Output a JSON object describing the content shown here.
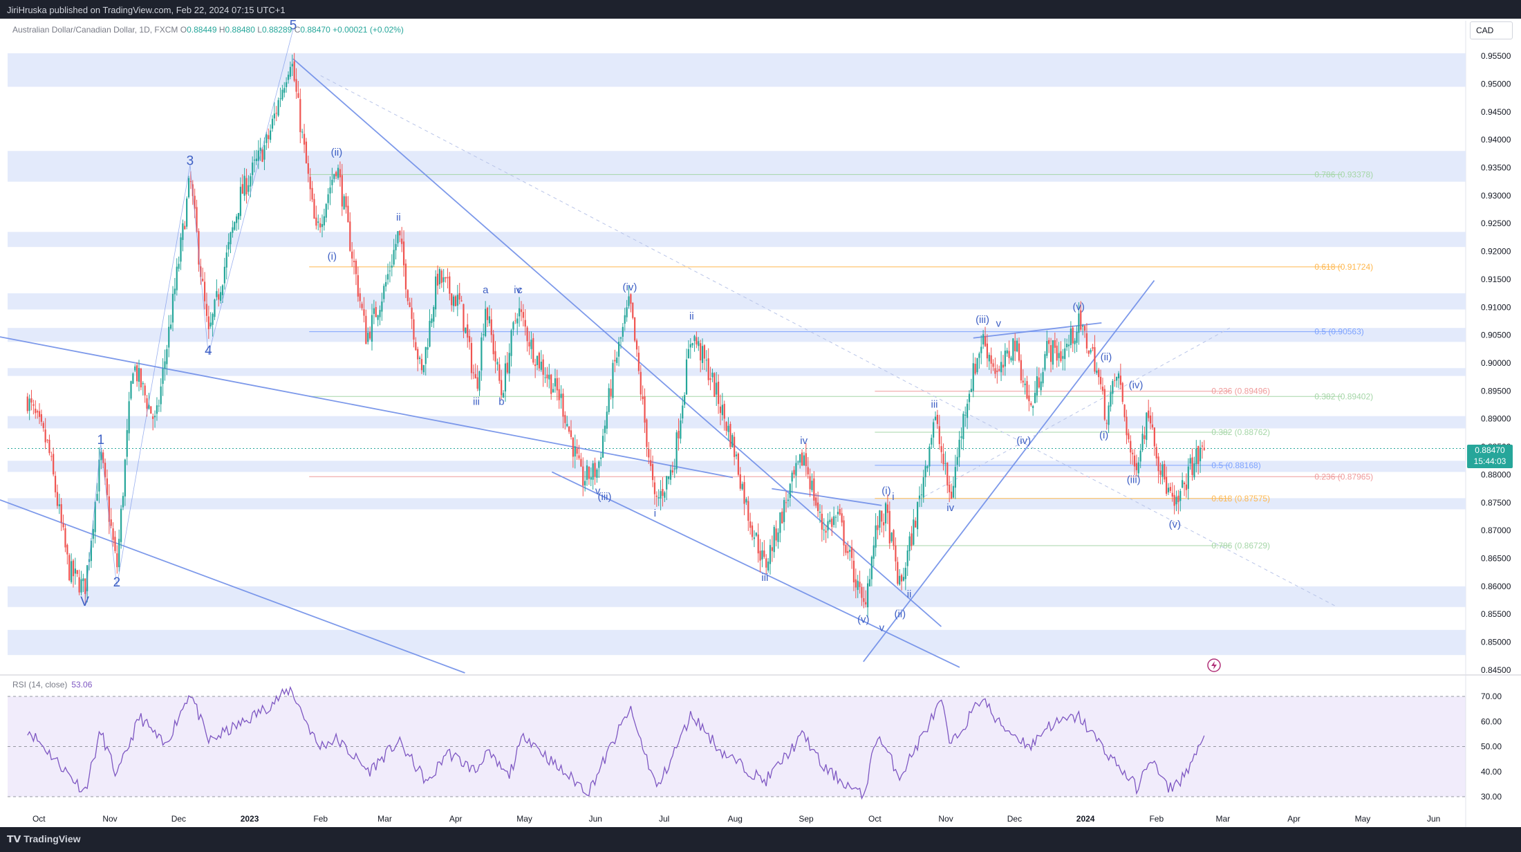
{
  "header": {
    "published_text": "JiriHruska published on TradingView.com, Feb 22, 2024 07:15 UTC+1"
  },
  "legend": {
    "symbol": "Australian Dollar/Canadian Dollar, 1D, FXCM",
    "o_label": "O",
    "o_value": "0.88449",
    "h_label": "H",
    "h_value": "0.88480",
    "l_label": "L",
    "l_value": "0.88289",
    "c_label": "C",
    "c_value": "0.88470",
    "change": "+0.00021 (+0.02%)"
  },
  "currency_label": "CAD",
  "last_price": {
    "value": "0.88470",
    "countdown": "15:44:03"
  },
  "rsi": {
    "label": "RSI (14, close)",
    "value": "53.06",
    "ticks": [
      "70.00",
      "60.00",
      "50.00",
      "40.00",
      "30.00"
    ],
    "levels": [
      70,
      50,
      30
    ]
  },
  "footer": {
    "logo_text": "TradingView"
  },
  "colors": {
    "up": "#26a69a",
    "down": "#ef5350",
    "line": "#6f8ee8",
    "rsi": "#7e57c2",
    "zone": "#e3eafb"
  },
  "chart_data": {
    "type": "candlestick",
    "x_ticks": [
      "Oct",
      "Nov",
      "Dec",
      "2023",
      "Feb",
      "Mar",
      "Apr",
      "May",
      "Jun",
      "Jul",
      "Aug",
      "Sep",
      "Oct",
      "Nov",
      "Dec",
      "2024",
      "Feb",
      "Mar",
      "Apr",
      "May",
      "Jun"
    ],
    "y_ticks": [
      "0.95500",
      "0.95000",
      "0.94500",
      "0.94000",
      "0.93500",
      "0.93000",
      "0.92500",
      "0.92000",
      "0.91500",
      "0.91000",
      "0.90500",
      "0.90000",
      "0.89500",
      "0.89000",
      "0.88500",
      "0.88000",
      "0.87500",
      "0.87000",
      "0.86500",
      "0.86000",
      "0.85500",
      "0.85000",
      "0.84500"
    ],
    "ylim": [
      0.8445,
      0.9578
    ],
    "close_path": [
      [
        "2022-09-26",
        0.8935
      ],
      [
        "2022-10-05",
        0.885
      ],
      [
        "2022-10-14",
        0.863
      ],
      [
        "2022-10-21",
        0.8595
      ],
      [
        "2022-10-28",
        0.8835
      ],
      [
        "2022-11-04",
        0.863
      ],
      [
        "2022-11-11",
        0.9
      ],
      [
        "2022-11-21",
        0.889
      ],
      [
        "2022-12-01",
        0.918
      ],
      [
        "2022-12-06",
        0.933
      ],
      [
        "2022-12-14",
        0.9045
      ],
      [
        "2022-12-28",
        0.93
      ],
      [
        "2023-01-09",
        0.94
      ],
      [
        "2023-01-19",
        0.955
      ],
      [
        "2023-01-30",
        0.923
      ],
      [
        "2023-02-08",
        0.9358
      ],
      [
        "2023-02-21",
        0.9045
      ],
      [
        "2023-03-01",
        0.9135
      ],
      [
        "2023-03-07",
        0.9233
      ],
      [
        "2023-03-17",
        0.8975
      ],
      [
        "2023-03-24",
        0.9155
      ],
      [
        "2023-04-03",
        0.9105
      ],
      [
        "2023-04-10",
        0.8955
      ],
      [
        "2023-04-14",
        0.9105
      ],
      [
        "2023-04-21",
        0.8945
      ],
      [
        "2023-04-28",
        0.91
      ],
      [
        "2023-05-05",
        0.902
      ],
      [
        "2023-05-17",
        0.8935
      ],
      [
        "2023-05-26",
        0.879
      ],
      [
        "2023-06-02",
        0.881
      ],
      [
        "2023-06-09",
        0.899
      ],
      [
        "2023-06-16",
        0.911
      ],
      [
        "2023-06-27",
        0.8745
      ],
      [
        "2023-07-05",
        0.8815
      ],
      [
        "2023-07-13",
        0.9055
      ],
      [
        "2023-07-21",
        0.898
      ],
      [
        "2023-07-31",
        0.8855
      ],
      [
        "2023-08-07",
        0.8725
      ],
      [
        "2023-08-14",
        0.8635
      ],
      [
        "2023-08-25",
        0.8775
      ],
      [
        "2023-08-31",
        0.8835
      ],
      [
        "2023-09-08",
        0.8705
      ],
      [
        "2023-09-15",
        0.8725
      ],
      [
        "2023-09-26",
        0.856
      ],
      [
        "2023-10-02",
        0.871
      ],
      [
        "2023-10-06",
        0.873
      ],
      [
        "2023-10-12",
        0.8595
      ],
      [
        "2023-10-20",
        0.8745
      ],
      [
        "2023-10-27",
        0.8905
      ],
      [
        "2023-11-03",
        0.8755
      ],
      [
        "2023-11-10",
        0.8935
      ],
      [
        "2023-11-17",
        0.9045
      ],
      [
        "2023-11-24",
        0.8975
      ],
      [
        "2023-12-01",
        0.904
      ],
      [
        "2023-12-08",
        0.8915
      ],
      [
        "2023-12-15",
        0.9025
      ],
      [
        "2023-12-22",
        0.9015
      ],
      [
        "2023-12-29",
        0.907
      ],
      [
        "2024-01-05",
        0.9005
      ],
      [
        "2024-01-10",
        0.8905
      ],
      [
        "2024-01-15",
        0.8985
      ],
      [
        "2024-01-22",
        0.8805
      ],
      [
        "2024-01-29",
        0.892
      ],
      [
        "2024-02-02",
        0.882
      ],
      [
        "2024-02-09",
        0.8735
      ],
      [
        "2024-02-16",
        0.8815
      ],
      [
        "2024-02-22",
        0.8847
      ]
    ],
    "wave_labels": [
      {
        "t": "V",
        "d": "2022-10-21",
        "p": 0.8565
      },
      {
        "t": "1",
        "d": "2022-10-28",
        "p": 0.8855
      },
      {
        "t": "2",
        "d": "2022-11-04",
        "p": 0.86
      },
      {
        "t": "3",
        "d": "2022-12-06",
        "p": 0.9355
      },
      {
        "t": "4",
        "d": "2022-12-14",
        "p": 0.9015
      },
      {
        "t": "5",
        "d": "2023-01-20",
        "p": 0.9598
      },
      {
        "t": "(ii)",
        "d": "2023-02-08",
        "p": 0.9372
      },
      {
        "t": "(i)",
        "d": "2023-02-06",
        "p": 0.9185
      },
      {
        "t": "ii",
        "d": "2023-03-07",
        "p": 0.9255
      },
      {
        "t": "a",
        "d": "2023-04-14",
        "p": 0.9125
      },
      {
        "t": "iii",
        "d": "2023-04-10",
        "p": 0.8925
      },
      {
        "t": "b",
        "d": "2023-04-21",
        "p": 0.8925
      },
      {
        "t": "iv",
        "d": "2023-04-28",
        "p": 0.9125
      },
      {
        "t": "c",
        "d": "2023-04-29",
        "p": 0.9125
      },
      {
        "t": "(iv)",
        "d": "2023-06-16",
        "p": 0.913
      },
      {
        "t": "v",
        "d": "2023-06-02",
        "p": 0.8765
      },
      {
        "t": "(iii)",
        "d": "2023-06-05",
        "p": 0.8755
      },
      {
        "t": "ii",
        "d": "2023-07-13",
        "p": 0.9078
      },
      {
        "t": "i",
        "d": "2023-06-27",
        "p": 0.8725
      },
      {
        "t": "iii",
        "d": "2023-08-14",
        "p": 0.861
      },
      {
        "t": "iv",
        "d": "2023-08-31",
        "p": 0.8855
      },
      {
        "t": "(v)",
        "d": "2023-09-26",
        "p": 0.8535
      },
      {
        "t": "v",
        "d": "2023-10-04",
        "p": 0.852
      },
      {
        "t": "(i)",
        "d": "2023-10-06",
        "p": 0.8765
      },
      {
        "t": "i",
        "d": "2023-10-09",
        "p": 0.8755
      },
      {
        "t": "(ii)",
        "d": "2023-10-12",
        "p": 0.8545
      },
      {
        "t": "ii",
        "d": "2023-10-16",
        "p": 0.858
      },
      {
        "t": "iii",
        "d": "2023-10-27",
        "p": 0.892
      },
      {
        "t": "iv",
        "d": "2023-11-03",
        "p": 0.8735
      },
      {
        "t": "(iii)",
        "d": "2023-11-17",
        "p": 0.9072
      },
      {
        "t": "v",
        "d": "2023-11-24",
        "p": 0.9065
      },
      {
        "t": "(iv)",
        "d": "2023-12-05",
        "p": 0.8855
      },
      {
        "t": "(v)",
        "d": "2023-12-29",
        "p": 0.9095
      },
      {
        "t": "(ii)",
        "d": "2024-01-10",
        "p": 0.9005
      },
      {
        "t": "(i)",
        "d": "2024-01-09",
        "p": 0.8865
      },
      {
        "t": "(iv)",
        "d": "2024-01-23",
        "p": 0.8955
      },
      {
        "t": "(iii)",
        "d": "2024-01-22",
        "p": 0.8785
      },
      {
        "t": "(v)",
        "d": "2024-02-09",
        "p": 0.8705
      }
    ],
    "fib_levels": [
      {
        "label": "0.786 (0.93378)",
        "price": 0.93378,
        "color": "#a5d6a7",
        "x_from": "2023-01-27",
        "x_to": "2024-04-22",
        "label_at": "2024-04-10"
      },
      {
        "label": "0.618 (0.91724)",
        "price": 0.91724,
        "color": "#ffb74d",
        "x_from": "2023-01-27",
        "x_to": "2024-04-22",
        "label_at": "2024-04-10"
      },
      {
        "label": "0.5 (0.90563)",
        "price": 0.90563,
        "color": "#7ea3ff",
        "x_from": "2023-01-27",
        "x_to": "2024-04-22",
        "label_at": "2024-04-10"
      },
      {
        "label": "0.236 (0.89496)",
        "price": 0.89496,
        "color": "#ef9a9a",
        "x_from": "2023-10-01",
        "x_to": "2024-03-04",
        "label_at": "2024-02-25"
      },
      {
        "label": "0.382 (0.89402)",
        "price": 0.89402,
        "color": "#a5d6a7",
        "x_from": "2023-01-27",
        "x_to": "2024-04-22",
        "label_at": "2024-04-10"
      },
      {
        "label": "0.382 (0.88762)",
        "price": 0.88762,
        "color": "#a5d6a7",
        "x_from": "2023-10-01",
        "x_to": "2024-03-04",
        "label_at": "2024-02-25"
      },
      {
        "label": "0.5 (0.88168)",
        "price": 0.88168,
        "color": "#7ea3ff",
        "x_from": "2023-10-01",
        "x_to": "2024-03-04",
        "label_at": "2024-02-25"
      },
      {
        "label": "0.236 (0.87965)",
        "price": 0.87965,
        "color": "#ef9a9a",
        "x_from": "2023-01-27",
        "x_to": "2024-04-22",
        "label_at": "2024-04-10"
      },
      {
        "label": "0.618 (0.87575)",
        "price": 0.87575,
        "color": "#ffb74d",
        "x_from": "2023-10-01",
        "x_to": "2024-03-04",
        "label_at": "2024-02-25"
      },
      {
        "label": "0.786 (0.86729)",
        "price": 0.86729,
        "color": "#a5d6a7",
        "x_from": "2023-10-01",
        "x_to": "2024-03-04",
        "label_at": "2024-02-25"
      }
    ],
    "zones": [
      [
        0.9495,
        0.9555
      ],
      [
        0.9325,
        0.938
      ],
      [
        0.9208,
        0.9235
      ],
      [
        0.9096,
        0.9125
      ],
      [
        0.9038,
        0.9063
      ],
      [
        0.8977,
        0.8991
      ],
      [
        0.8883,
        0.8905
      ],
      [
        0.8805,
        0.8825
      ],
      [
        0.8738,
        0.8758
      ],
      [
        0.8563,
        0.86
      ],
      [
        0.8477,
        0.8522
      ]
    ],
    "trendlines": [
      [
        "2022-09-14",
        0.9047,
        "2023-07-31",
        0.8795
      ],
      [
        "2022-09-14",
        0.8755,
        "2023-04-05",
        0.8445
      ],
      [
        "2023-01-20",
        0.9545,
        "2023-10-30",
        0.8528
      ],
      [
        "2023-05-13",
        0.8805,
        "2023-11-07",
        0.8455
      ],
      [
        "2023-09-26",
        0.8465,
        "2024-01-31",
        0.9148
      ],
      [
        "2023-11-13",
        0.9045,
        "2024-01-08",
        0.9072
      ],
      [
        "2023-08-17",
        0.8775,
        "2023-10-04",
        0.8745
      ]
    ],
    "dashed_trendlines": [
      [
        "2023-02-01",
        0.9515,
        "2024-04-19",
        0.8565
      ],
      [
        "2023-10-20",
        0.8755,
        "2024-03-04",
        0.9063
      ]
    ],
    "rsi_path": [
      [
        "2022-09-26",
        57
      ],
      [
        "2022-10-21",
        32
      ],
      [
        "2022-10-28",
        56
      ],
      [
        "2022-11-04",
        38
      ],
      [
        "2022-11-14",
        62
      ],
      [
        "2022-11-25",
        50
      ],
      [
        "2022-12-06",
        72
      ],
      [
        "2022-12-14",
        52
      ],
      [
        "2022-12-30",
        60
      ],
      [
        "2023-01-09",
        66
      ],
      [
        "2023-01-19",
        73
      ],
      [
        "2023-01-31",
        50
      ],
      [
        "2023-02-08",
        53
      ],
      [
        "2023-02-22",
        40
      ],
      [
        "2023-03-07",
        52
      ],
      [
        "2023-03-20",
        35
      ],
      [
        "2023-03-28",
        48
      ],
      [
        "2023-04-10",
        40
      ],
      [
        "2023-04-14",
        48
      ],
      [
        "2023-04-24",
        38
      ],
      [
        "2023-05-01",
        55
      ],
      [
        "2023-05-15",
        42
      ],
      [
        "2023-05-29",
        32
      ],
      [
        "2023-06-16",
        65
      ],
      [
        "2023-06-28",
        33
      ],
      [
        "2023-07-13",
        63
      ],
      [
        "2023-07-26",
        48
      ],
      [
        "2023-08-14",
        36
      ],
      [
        "2023-08-31",
        55
      ],
      [
        "2023-09-08",
        42
      ],
      [
        "2023-09-26",
        30
      ],
      [
        "2023-10-02",
        55
      ],
      [
        "2023-10-12",
        38
      ],
      [
        "2023-10-30",
        68
      ],
      [
        "2023-11-03",
        50
      ],
      [
        "2023-11-17",
        70
      ],
      [
        "2023-11-23",
        60
      ],
      [
        "2023-12-08",
        50
      ],
      [
        "2023-12-15",
        58
      ],
      [
        "2023-12-29",
        62
      ],
      [
        "2024-01-10",
        48
      ],
      [
        "2024-01-24",
        33
      ],
      [
        "2024-01-29",
        46
      ],
      [
        "2024-02-06",
        33
      ],
      [
        "2024-02-12",
        37
      ],
      [
        "2024-02-22",
        53
      ]
    ]
  }
}
